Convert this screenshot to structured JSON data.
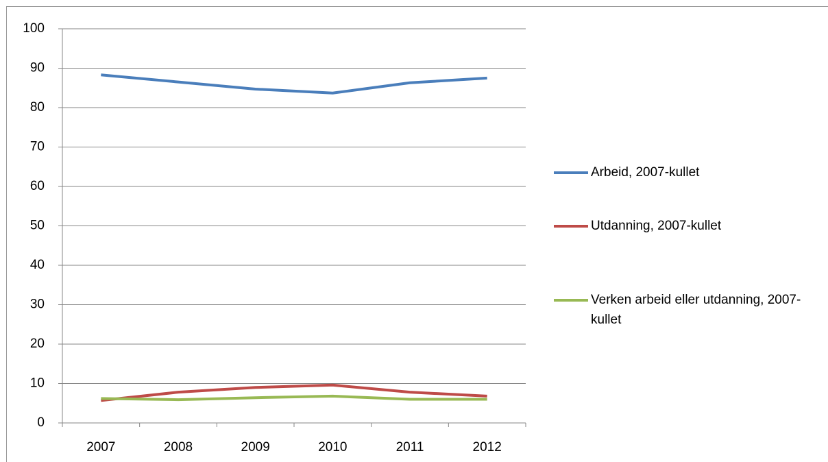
{
  "chart_data": {
    "type": "line",
    "categories": [
      "2007",
      "2008",
      "2009",
      "2010",
      "2011",
      "2012"
    ],
    "series": [
      {
        "name": "Arbeid, 2007-kullet",
        "color": "#4a7ebb",
        "values": [
          88.3,
          86.5,
          84.7,
          83.7,
          86.3,
          87.5
        ]
      },
      {
        "name": "Utdanning, 2007-kullet",
        "color": "#be4b48",
        "values": [
          5.7,
          7.8,
          9.0,
          9.6,
          7.8,
          6.8
        ]
      },
      {
        "name": "Verken arbeid eller utdanning, 2007-kullet",
        "color": "#98b954",
        "values": [
          6.2,
          5.9,
          6.4,
          6.8,
          6.0,
          6.0
        ]
      }
    ],
    "ylim": [
      0,
      100
    ],
    "yticks": [
      0,
      10,
      20,
      30,
      40,
      50,
      60,
      70,
      80,
      90,
      100
    ],
    "grid": true,
    "legend": "right"
  }
}
